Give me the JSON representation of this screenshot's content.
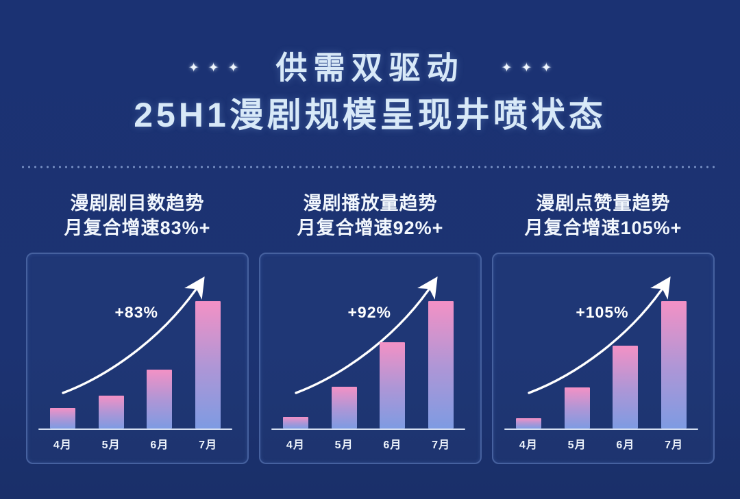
{
  "header": {
    "decor_star": "✦",
    "title": "供需双驱动",
    "subtitle": "25H1漫剧规模呈现井喷状态"
  },
  "colors": {
    "background": "#1B3273",
    "panel_border": "#46619F",
    "title_text": "#D8E9F8",
    "heading_text": "#F2F7FD",
    "bar_top": "#F391C5",
    "bar_bottom": "#7E9BE2",
    "axis_line": "#D5DFF1",
    "divider_dot": "#93ABDC",
    "arrow": "#FFFFFF"
  },
  "chart_data": [
    {
      "type": "bar",
      "title": "漫剧剧目数趋势",
      "subtitle": "月复合增速83%+",
      "annotation": "+83%",
      "categories": [
        "4月",
        "5月",
        "6月",
        "7月"
      ],
      "values_pct_of_max": [
        16,
        26,
        46,
        100
      ],
      "xlabel": "",
      "ylabel": "",
      "grid": false,
      "legend": false,
      "note": "y-axis unlabeled; values are bar heights relative to July = 100"
    },
    {
      "type": "bar",
      "title": "漫剧播放量趋势",
      "subtitle": "月复合增速92%+",
      "annotation": "+92%",
      "categories": [
        "4月",
        "5月",
        "6月",
        "7月"
      ],
      "values_pct_of_max": [
        9,
        33,
        68,
        100
      ],
      "xlabel": "",
      "ylabel": "",
      "grid": false,
      "legend": false,
      "note": "y-axis unlabeled; values are bar heights relative to July = 100"
    },
    {
      "type": "bar",
      "title": "漫剧点赞量趋势",
      "subtitle": "月复合增速105%+",
      "annotation": "+105%",
      "categories": [
        "4月",
        "5月",
        "6月",
        "7月"
      ],
      "values_pct_of_max": [
        8,
        32,
        65,
        100
      ],
      "xlabel": "",
      "ylabel": "",
      "grid": false,
      "legend": false,
      "note": "y-axis unlabeled; values are bar heights relative to July = 100"
    }
  ]
}
